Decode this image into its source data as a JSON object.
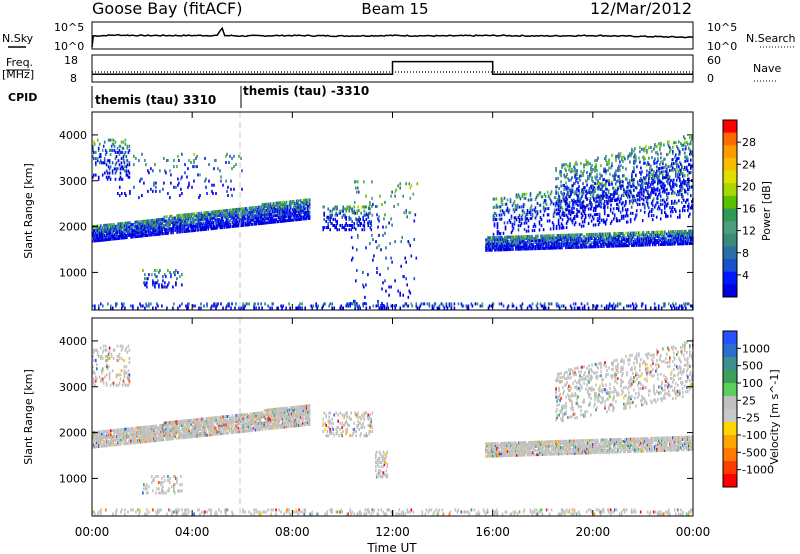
{
  "header": {
    "station": "Goose Bay (fitACF)",
    "beam": "Beam 15",
    "date": "12/Mar/2012"
  },
  "noise_panel": {
    "left_label": "N.Sky",
    "right_label": "N.Search",
    "tick_top": "10^5",
    "tick_bottom": "10^0"
  },
  "freq_panel": {
    "left_label_line1": "Freq.",
    "left_label_line2": "[MHz]",
    "right_label": "Nave",
    "left_ticks": [
      "18",
      "8"
    ],
    "right_ticks": [
      "60",
      "0"
    ]
  },
  "cpid_panel": {
    "label": "CPID",
    "segments": [
      "themis (tau) 3310",
      "themis (tau) -3310"
    ]
  },
  "x_axis": {
    "label": "Time UT",
    "ticks": [
      "00:00",
      "04:00",
      "08:00",
      "12:00",
      "16:00",
      "20:00",
      "00:00"
    ]
  },
  "colors": {
    "gray_scatter": "#c0c0c0",
    "dashed_marker": "#c8c8c8"
  },
  "chart_data": [
    {
      "type": "line",
      "name": "noise",
      "series": [
        {
          "name": "N.Sky",
          "x_hours": [
            0,
            0.05,
            1,
            2,
            3,
            4,
            5,
            5.2,
            5.3,
            6,
            8,
            10,
            12,
            14,
            16,
            18,
            20,
            22,
            24
          ],
          "values_log10": [
            0,
            2.4,
            2.6,
            2.5,
            2.5,
            2.5,
            2.5,
            4.1,
            2.5,
            2.4,
            2.5,
            2.4,
            2.5,
            2.4,
            2.5,
            2.4,
            2.5,
            2.3,
            2.1
          ]
        }
      ],
      "ylim_log10": [
        0,
        5
      ]
    },
    {
      "type": "line",
      "name": "frequency / nave",
      "series": [
        {
          "name": "Freq.",
          "x_hours": [
            0,
            12,
            12,
            16,
            16,
            24
          ],
          "values": [
            10.5,
            10.5,
            16,
            16,
            10.5,
            10.5
          ]
        },
        {
          "name": "Nave",
          "x_hours": [
            0,
            24
          ],
          "values": [
            21,
            21
          ]
        }
      ],
      "left_ylim": [
        8,
        18
      ],
      "right_ylim": [
        0,
        60
      ]
    },
    {
      "type": "heatmap",
      "name": "power",
      "ylabel": "Slant Range [km]",
      "colorbar_label": "Power [dB]",
      "ylim": [
        180,
        4500
      ],
      "xlim_hours": [
        0,
        24
      ],
      "yticks": [
        1000,
        2000,
        3000,
        4000
      ],
      "colorbar_ticks": [
        "28",
        "24",
        "20",
        "16",
        "12",
        "8",
        "4"
      ],
      "colorbar_colors": [
        "#ff0000",
        "#ff6a00",
        "#ff9a00",
        "#f7bd00",
        "#e0e000",
        "#a8d800",
        "#5ac000",
        "#2e9a5a",
        "#4d9e7a",
        "#3a8a7a",
        "#2a6fa8",
        "#1a4fd0",
        "#0018ff",
        "#0000e0"
      ],
      "scatter_regions": [
        {
          "h0": 0.0,
          "h1": 8.7,
          "r0": 1650,
          "r1": 2000,
          "r0_end": 2150,
          "r1_end": 2600,
          "density": 0.75
        },
        {
          "h0": 0.0,
          "h1": 1.5,
          "r0": 3000,
          "r1": 3900,
          "density": 0.2
        },
        {
          "h0": 1.0,
          "h1": 6.0,
          "r0": 2600,
          "r1": 3600,
          "density": 0.05
        },
        {
          "h0": 2.0,
          "h1": 3.6,
          "r0": 650,
          "r1": 1050,
          "density": 0.15
        },
        {
          "h0": 9.2,
          "h1": 11.2,
          "r0": 1900,
          "r1": 2450,
          "density": 0.25
        },
        {
          "h0": 10.3,
          "h1": 13.0,
          "r0": 200,
          "r1": 3000,
          "density": 0.04
        },
        {
          "h0": 15.7,
          "h1": 24.0,
          "r0": 1450,
          "r1": 1750,
          "r0_end": 1600,
          "r1_end": 1900,
          "density": 0.75
        },
        {
          "h0": 16.0,
          "h1": 24.0,
          "r0": 1800,
          "r1": 2600,
          "r0_end": 2200,
          "r1_end": 3300,
          "density": 0.18
        },
        {
          "h0": 18.5,
          "h1": 24.0,
          "r0": 2200,
          "r1": 3300,
          "r0_end": 2800,
          "r1_end": 4000,
          "density": 0.2
        },
        {
          "h0": 0.0,
          "h1": 24.0,
          "r0": 190,
          "r1": 320,
          "density": 0.2
        }
      ]
    },
    {
      "type": "heatmap",
      "name": "velocity",
      "ylabel": "Slant Range [km]",
      "colorbar_label": "Velocity [m s^-1]",
      "ylim": [
        180,
        4500
      ],
      "xlim_hours": [
        0,
        24
      ],
      "yticks": [
        1000,
        2000,
        3000,
        4000
      ],
      "colorbar_ticks": [
        "1000",
        "500",
        "100",
        "25",
        "-25",
        "-100",
        "-500",
        "-1000"
      ],
      "colorbar_colors": [
        "#2850ff",
        "#2a6fd0",
        "#3f8f8f",
        "#3aa05a",
        "#5ad05a",
        "#c0c0c0",
        "#c8c8c8",
        "#ffd700",
        "#ffa500",
        "#ff7a00",
        "#ff3c00",
        "#ff0000"
      ],
      "scatter_regions": [
        {
          "h0": 0.0,
          "h1": 8.7,
          "r0": 1650,
          "r1": 2000,
          "r0_end": 2150,
          "r1_end": 2600,
          "density": 0.75
        },
        {
          "h0": 0.0,
          "h1": 1.5,
          "r0": 3000,
          "r1": 3900,
          "density": 0.2
        },
        {
          "h0": 2.0,
          "h1": 3.6,
          "r0": 650,
          "r1": 1050,
          "density": 0.15
        },
        {
          "h0": 9.2,
          "h1": 11.2,
          "r0": 1900,
          "r1": 2450,
          "density": 0.25
        },
        {
          "h0": 11.3,
          "h1": 11.8,
          "r0": 1000,
          "r1": 1600,
          "density": 0.3
        },
        {
          "h0": 15.7,
          "h1": 24.0,
          "r0": 1450,
          "r1": 1750,
          "r0_end": 1600,
          "r1_end": 1900,
          "density": 0.75
        },
        {
          "h0": 18.5,
          "h1": 24.0,
          "r0": 2200,
          "r1": 3300,
          "r0_end": 2800,
          "r1_end": 4000,
          "density": 0.2
        },
        {
          "h0": 0.0,
          "h1": 24.0,
          "r0": 190,
          "r1": 320,
          "density": 0.2
        }
      ]
    }
  ]
}
